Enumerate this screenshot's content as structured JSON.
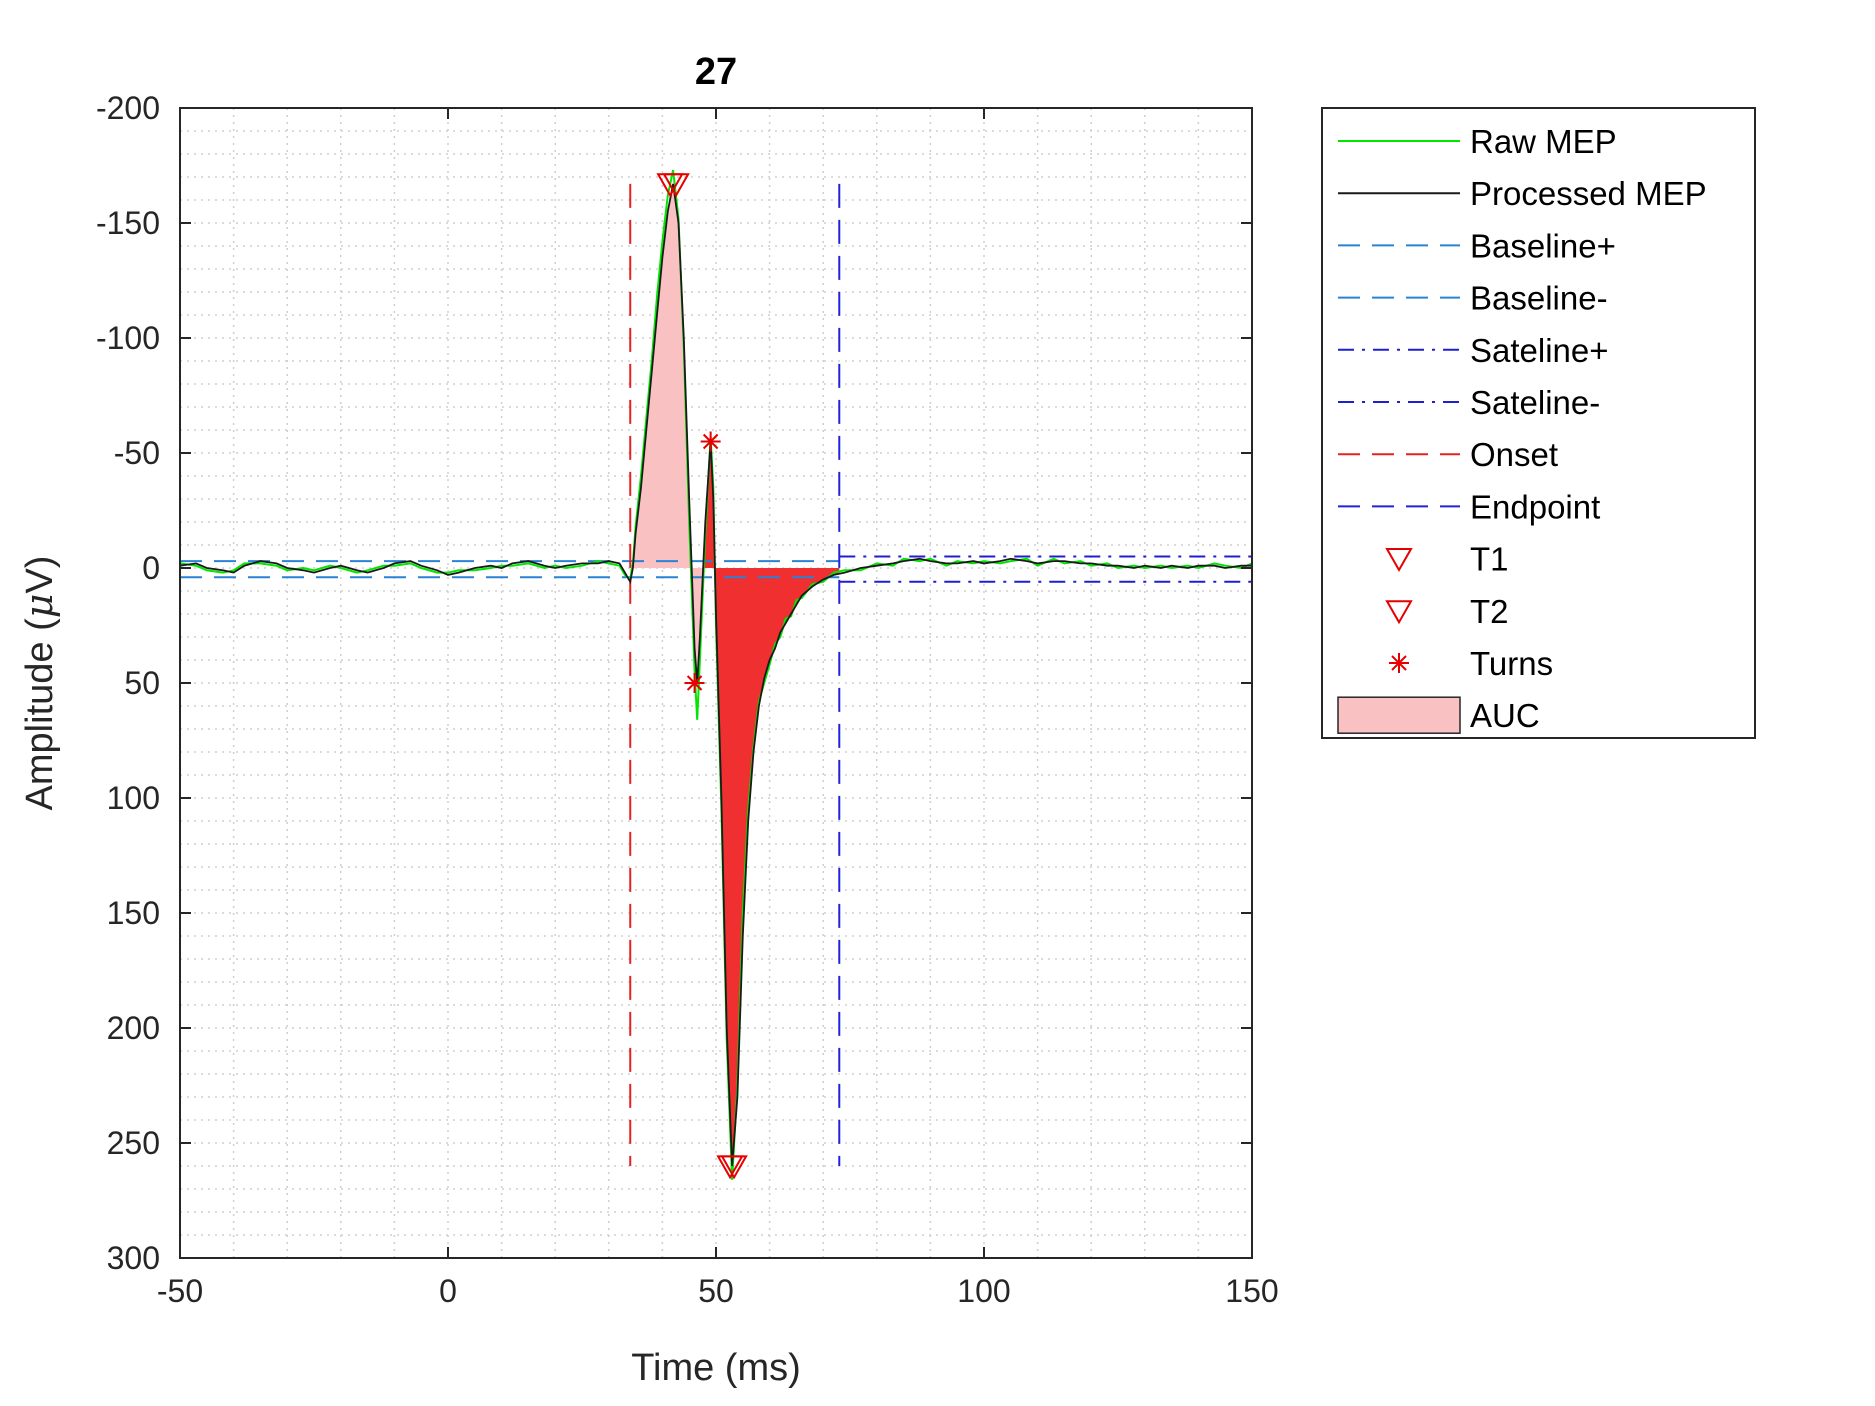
{
  "chart_data": {
    "type": "line",
    "title": "27",
    "xlabel": "Time (ms)",
    "ylabel_main": "Amplitude (",
    "ylabel_mu": "μ",
    "ylabel_unit": "V)",
    "xlim": [
      -50,
      150
    ],
    "ylim": [
      -200,
      300
    ],
    "y_reversed": true,
    "x_ticks": [
      "-50",
      "0",
      "50",
      "100",
      "150"
    ],
    "y_ticks": [
      "-200",
      "-150",
      "-100",
      "-50",
      "0",
      "50",
      "100",
      "150",
      "200",
      "250",
      "300"
    ],
    "grid": "dotted, minor and major",
    "legend_position": "outside-right",
    "legend": [
      {
        "key": "raw",
        "label": "Raw MEP"
      },
      {
        "key": "processed",
        "label": "Processed MEP"
      },
      {
        "key": "baseline_plus",
        "label": "Baseline+"
      },
      {
        "key": "baseline_minus",
        "label": "Baseline-"
      },
      {
        "key": "sateline_plus",
        "label": "Sateline+"
      },
      {
        "key": "sateline_minus",
        "label": "Sateline-"
      },
      {
        "key": "onset",
        "label": "Onset"
      },
      {
        "key": "endpoint",
        "label": "Endpoint"
      },
      {
        "key": "t1",
        "label": "T1"
      },
      {
        "key": "t2",
        "label": "T2"
      },
      {
        "key": "turns",
        "label": "Turns"
      },
      {
        "key": "auc",
        "label": "AUC"
      }
    ],
    "colors": {
      "raw": "#00e600",
      "processed": "#1a1a1a",
      "baseline": "#2a82d4",
      "sateline": "#1f1fd0",
      "onset": "#e62222",
      "endpoint": "#2222dd",
      "markers": "#e60000",
      "auc_light": "#f9c1c1",
      "auc_dark": "#f03030"
    },
    "baseline": {
      "plus": 4,
      "minus": -3,
      "x_range": [
        -50,
        73
      ]
    },
    "sateline": {
      "plus": 6,
      "minus": -5,
      "x_range": [
        73,
        150
      ]
    },
    "onset_x": 34,
    "endpoint_x": 73,
    "vline_y_range": [
      -167,
      260
    ],
    "t1": [
      {
        "x": 42,
        "y": -167
      }
    ],
    "t2": [
      {
        "x": 53,
        "y": 260
      }
    ],
    "turns": [
      {
        "x": 46,
        "y": 50
      },
      {
        "x": 49,
        "y": -55
      }
    ],
    "processed_mep": [
      [
        -50,
        -1
      ],
      [
        -47,
        -2
      ],
      [
        -45,
        0
      ],
      [
        -42,
        1
      ],
      [
        -40,
        2
      ],
      [
        -38,
        -1
      ],
      [
        -35,
        -3
      ],
      [
        -32,
        -2
      ],
      [
        -30,
        0
      ],
      [
        -27,
        1
      ],
      [
        -25,
        2
      ],
      [
        -22,
        0
      ],
      [
        -20,
        -1
      ],
      [
        -17,
        1
      ],
      [
        -15,
        2
      ],
      [
        -12,
        0
      ],
      [
        -10,
        -2
      ],
      [
        -7,
        -3
      ],
      [
        -5,
        -1
      ],
      [
        -2,
        1
      ],
      [
        0,
        3
      ],
      [
        2,
        2
      ],
      [
        5,
        0
      ],
      [
        8,
        -1
      ],
      [
        10,
        0
      ],
      [
        12,
        -2
      ],
      [
        15,
        -3
      ],
      [
        18,
        -1
      ],
      [
        20,
        0
      ],
      [
        22,
        -1
      ],
      [
        25,
        -2
      ],
      [
        28,
        -2
      ],
      [
        30,
        -3
      ],
      [
        32,
        -2
      ],
      [
        33,
        2
      ],
      [
        34,
        6
      ],
      [
        34.5,
        0
      ],
      [
        35,
        -15
      ],
      [
        36,
        -35
      ],
      [
        37,
        -60
      ],
      [
        38,
        -85
      ],
      [
        39,
        -110
      ],
      [
        40,
        -135
      ],
      [
        41,
        -155
      ],
      [
        42,
        -167
      ],
      [
        43,
        -150
      ],
      [
        44,
        -100
      ],
      [
        45,
        -30
      ],
      [
        46,
        35
      ],
      [
        46.5,
        50
      ],
      [
        47,
        30
      ],
      [
        48,
        -20
      ],
      [
        49,
        -55
      ],
      [
        49.5,
        -30
      ],
      [
        50,
        20
      ],
      [
        51,
        100
      ],
      [
        52,
        200
      ],
      [
        53,
        260
      ],
      [
        54,
        230
      ],
      [
        55,
        160
      ],
      [
        56,
        110
      ],
      [
        57,
        80
      ],
      [
        58,
        60
      ],
      [
        59,
        48
      ],
      [
        60,
        40
      ],
      [
        61,
        35
      ],
      [
        62,
        28
      ],
      [
        63,
        24
      ],
      [
        64,
        20
      ],
      [
        65,
        16
      ],
      [
        66,
        12
      ],
      [
        68,
        8
      ],
      [
        70,
        5
      ],
      [
        72,
        3
      ],
      [
        74,
        2
      ],
      [
        77,
        0
      ],
      [
        80,
        -1
      ],
      [
        83,
        -2
      ],
      [
        85,
        -3
      ],
      [
        88,
        -4
      ],
      [
        90,
        -3
      ],
      [
        93,
        -2
      ],
      [
        95,
        -2
      ],
      [
        98,
        -3
      ],
      [
        100,
        -2
      ],
      [
        103,
        -3
      ],
      [
        105,
        -4
      ],
      [
        108,
        -3
      ],
      [
        110,
        -2
      ],
      [
        113,
        -3
      ],
      [
        115,
        -3
      ],
      [
        118,
        -2
      ],
      [
        120,
        -2
      ],
      [
        123,
        -1
      ],
      [
        125,
        -1
      ],
      [
        128,
        0
      ],
      [
        130,
        -1
      ],
      [
        133,
        0
      ],
      [
        135,
        -1
      ],
      [
        138,
        0
      ],
      [
        140,
        -1
      ],
      [
        143,
        -1
      ],
      [
        145,
        0
      ],
      [
        148,
        -1
      ],
      [
        150,
        -1
      ]
    ],
    "raw_mep": [
      [
        -50,
        -2
      ],
      [
        -47,
        -1
      ],
      [
        -45,
        1
      ],
      [
        -42,
        2
      ],
      [
        -40,
        1
      ],
      [
        -38,
        -2
      ],
      [
        -35,
        -2
      ],
      [
        -32,
        -1
      ],
      [
        -30,
        1
      ],
      [
        -27,
        0
      ],
      [
        -25,
        1
      ],
      [
        -22,
        -1
      ],
      [
        -20,
        0
      ],
      [
        -17,
        2
      ],
      [
        -15,
        1
      ],
      [
        -12,
        -1
      ],
      [
        -10,
        -1
      ],
      [
        -7,
        -2
      ],
      [
        -5,
        0
      ],
      [
        -2,
        2
      ],
      [
        0,
        2
      ],
      [
        2,
        1
      ],
      [
        5,
        1
      ],
      [
        8,
        0
      ],
      [
        10,
        -1
      ],
      [
        12,
        -1
      ],
      [
        15,
        -2
      ],
      [
        18,
        0
      ],
      [
        20,
        -1
      ],
      [
        22,
        0
      ],
      [
        25,
        -1
      ],
      [
        28,
        -3
      ],
      [
        30,
        -2
      ],
      [
        32,
        -1
      ],
      [
        33,
        3
      ],
      [
        34,
        5
      ],
      [
        34.5,
        -2
      ],
      [
        35,
        -18
      ],
      [
        36,
        -40
      ],
      [
        37,
        -65
      ],
      [
        38,
        -90
      ],
      [
        39,
        -118
      ],
      [
        40,
        -142
      ],
      [
        41,
        -162
      ],
      [
        42,
        -173
      ],
      [
        43,
        -152
      ],
      [
        44,
        -96
      ],
      [
        45,
        -20
      ],
      [
        46,
        45
      ],
      [
        46.5,
        66
      ],
      [
        47,
        40
      ],
      [
        48,
        -15
      ],
      [
        49,
        -57
      ],
      [
        49.5,
        -35
      ],
      [
        50,
        25
      ],
      [
        51,
        105
      ],
      [
        52,
        205
      ],
      [
        53,
        266
      ],
      [
        54,
        225
      ],
      [
        55,
        150
      ],
      [
        56,
        105
      ],
      [
        57,
        78
      ],
      [
        58,
        58
      ],
      [
        59,
        50
      ],
      [
        60,
        42
      ],
      [
        61,
        33
      ],
      [
        62,
        30
      ],
      [
        63,
        22
      ],
      [
        64,
        21
      ],
      [
        65,
        14
      ],
      [
        66,
        13
      ],
      [
        68,
        7
      ],
      [
        70,
        6
      ],
      [
        72,
        2
      ],
      [
        74,
        1
      ],
      [
        77,
        1
      ],
      [
        80,
        -2
      ],
      [
        83,
        -1
      ],
      [
        85,
        -4
      ],
      [
        88,
        -3
      ],
      [
        90,
        -4
      ],
      [
        93,
        -1
      ],
      [
        95,
        -3
      ],
      [
        98,
        -2
      ],
      [
        100,
        -3
      ],
      [
        103,
        -2
      ],
      [
        105,
        -3
      ],
      [
        108,
        -4
      ],
      [
        110,
        -1
      ],
      [
        113,
        -4
      ],
      [
        115,
        -2
      ],
      [
        118,
        -3
      ],
      [
        120,
        -1
      ],
      [
        123,
        -2
      ],
      [
        125,
        0
      ],
      [
        128,
        -1
      ],
      [
        130,
        0
      ],
      [
        133,
        -1
      ],
      [
        135,
        0
      ],
      [
        138,
        -1
      ],
      [
        140,
        0
      ],
      [
        143,
        -2
      ],
      [
        145,
        -1
      ],
      [
        148,
        0
      ],
      [
        150,
        -2
      ]
    ]
  }
}
